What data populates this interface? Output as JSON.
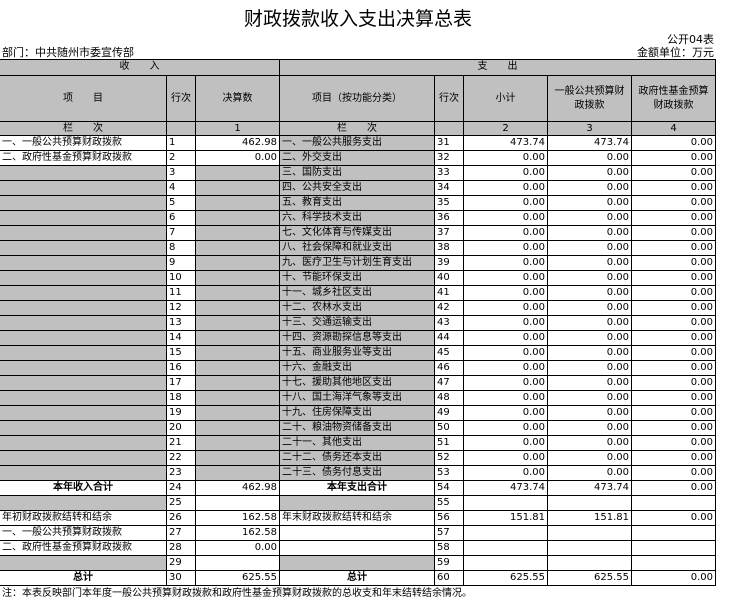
{
  "title": "财政拨款收入支出决算总表",
  "table_no": "公开04表",
  "department": "部门：中共随州市委宣传部",
  "unit": "金额单位：万元",
  "header": {
    "income": "收　　入",
    "expense": "支　　出",
    "columns": [
      "项　　目",
      "行次",
      "决算数",
      "项目（按功能分类）",
      "行次",
      "小计",
      "一般公共预算财政拨款",
      "政府性基金预算财政拨款"
    ],
    "lanci": [
      "栏　　次",
      null,
      "1",
      "栏　　次",
      null,
      "2",
      "3",
      "4"
    ]
  },
  "rows": [
    [
      "一、一般公共预算财政拨款",
      "1",
      "462.98",
      "一、一般公共服务支出",
      "31",
      "473.74",
      "473.74",
      "0.00"
    ],
    [
      "二、政府性基金预算财政拨款",
      "2",
      "0.00",
      "二、外交支出",
      "32",
      "0.00",
      "0.00",
      "0.00"
    ],
    [
      null,
      "3",
      null,
      "三、国防支出",
      "33",
      "0.00",
      "0.00",
      "0.00"
    ],
    [
      null,
      "4",
      null,
      "四、公共安全支出",
      "34",
      "0.00",
      "0.00",
      "0.00"
    ],
    [
      null,
      "5",
      null,
      "五、教育支出",
      "35",
      "0.00",
      "0.00",
      "0.00"
    ],
    [
      null,
      "6",
      null,
      "六、科学技术支出",
      "36",
      "0.00",
      "0.00",
      "0.00"
    ],
    [
      null,
      "7",
      null,
      "七、文化体育与传媒支出",
      "37",
      "0.00",
      "0.00",
      "0.00"
    ],
    [
      null,
      "8",
      null,
      "八、社会保障和就业支出",
      "38",
      "0.00",
      "0.00",
      "0.00"
    ],
    [
      null,
      "9",
      null,
      "九、医疗卫生与计划生育支出",
      "39",
      "0.00",
      "0.00",
      "0.00"
    ],
    [
      null,
      "10",
      null,
      "十、节能环保支出",
      "40",
      "0.00",
      "0.00",
      "0.00"
    ],
    [
      null,
      "11",
      null,
      "十一、城乡社区支出",
      "41",
      "0.00",
      "0.00",
      "0.00"
    ],
    [
      null,
      "12",
      null,
      "十二、农林水支出",
      "42",
      "0.00",
      "0.00",
      "0.00"
    ],
    [
      null,
      "13",
      null,
      "十三、交通运输支出",
      "43",
      "0.00",
      "0.00",
      "0.00"
    ],
    [
      null,
      "14",
      null,
      "十四、资源勘探信息等支出",
      "44",
      "0.00",
      "0.00",
      "0.00"
    ],
    [
      null,
      "15",
      null,
      "十五、商业服务业等支出",
      "45",
      "0.00",
      "0.00",
      "0.00"
    ],
    [
      null,
      "16",
      null,
      "十六、金融支出",
      "46",
      "0.00",
      "0.00",
      "0.00"
    ],
    [
      null,
      "17",
      null,
      "十七、援助其他地区支出",
      "47",
      "0.00",
      "0.00",
      "0.00"
    ],
    [
      null,
      "18",
      null,
      "十八、国土海洋气象等支出",
      "48",
      "0.00",
      "0.00",
      "0.00"
    ],
    [
      null,
      "19",
      null,
      "十九、住房保障支出",
      "49",
      "0.00",
      "0.00",
      "0.00"
    ],
    [
      null,
      "20",
      null,
      "二十、粮油物资储备支出",
      "50",
      "0.00",
      "0.00",
      "0.00"
    ],
    [
      null,
      "21",
      null,
      "二十一、其他支出",
      "51",
      "0.00",
      "0.00",
      "0.00"
    ],
    [
      null,
      "22",
      null,
      "二十二、债务还本支出",
      "52",
      "0.00",
      "0.00",
      "0.00"
    ],
    [
      null,
      "23",
      null,
      "二十三、债务付息支出",
      "53",
      "0.00",
      "0.00",
      "0.00"
    ],
    [
      "本年收入合计",
      "24",
      "462.98",
      "本年支出合计",
      "54",
      "473.74",
      "473.74",
      "0.00"
    ],
    [
      null,
      "25",
      null,
      null,
      "55",
      null,
      null,
      null
    ],
    [
      "年初财政拨款结转和结余",
      "26",
      "162.58",
      "年末财政拨款结转和结余",
      "56",
      "151.81",
      "151.81",
      "0.00"
    ],
    [
      "一、一般公共预算财政拨款",
      "27",
      "162.58",
      null,
      "57",
      null,
      null,
      null
    ],
    [
      "二、政府性基金预算财政拨款",
      "28",
      "0.00",
      null,
      "58",
      null,
      null,
      null
    ],
    [
      null,
      "29",
      null,
      null,
      "59",
      null,
      null,
      null
    ],
    [
      "总计",
      "30",
      "625.55",
      "总计",
      "60",
      "625.55",
      "625.55",
      "0.00"
    ]
  ],
  "note": "注：本表反映部门本年度一般公共预算财政拨款和政府性基金预算财政拨款的总收支和年末结转结余情况。"
}
